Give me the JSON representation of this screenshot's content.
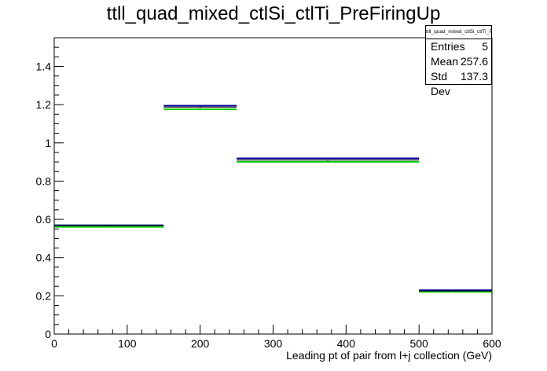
{
  "chart_data": {
    "type": "histogram",
    "title": "ttll_quad_mixed_ctlSi_ctlTi_PreFiringUp",
    "xlabel": "Leading pt of pair from l+j collection (GeV)",
    "ylabel": "",
    "xlim": [
      0,
      600
    ],
    "ylim": [
      0,
      1.55
    ],
    "x_ticks": [
      0,
      100,
      200,
      300,
      400,
      500,
      600
    ],
    "y_ticks": [
      0,
      0.2,
      0.4,
      0.6,
      0.8,
      1,
      1.2,
      1.4
    ],
    "bins": [
      {
        "x0": 0,
        "x1": 150
      },
      {
        "x0": 150,
        "x1": 250
      },
      {
        "x0": 250,
        "x1": 500
      },
      {
        "x0": 500,
        "x1": 600
      }
    ],
    "series": [
      {
        "color": "#000099",
        "values": [
          0.565,
          1.19,
          0.915,
          0.225
        ]
      },
      {
        "color": "#00cc00",
        "values": [
          0.565,
          1.18,
          0.905,
          0.225
        ]
      },
      {
        "color": "#000000",
        "values": [
          0.568,
          1.187,
          0.91,
          0.225
        ]
      }
    ],
    "legend_position": "top-right",
    "stats": {
      "name": "ttll_quad_mixed_ctlSi_ctlTi_PreFiringUp",
      "rows": [
        {
          "label": "Entries",
          "value": "5"
        },
        {
          "label": "Mean",
          "value": "257.6"
        },
        {
          "label": "Std Dev",
          "value": "137.3"
        }
      ]
    }
  }
}
